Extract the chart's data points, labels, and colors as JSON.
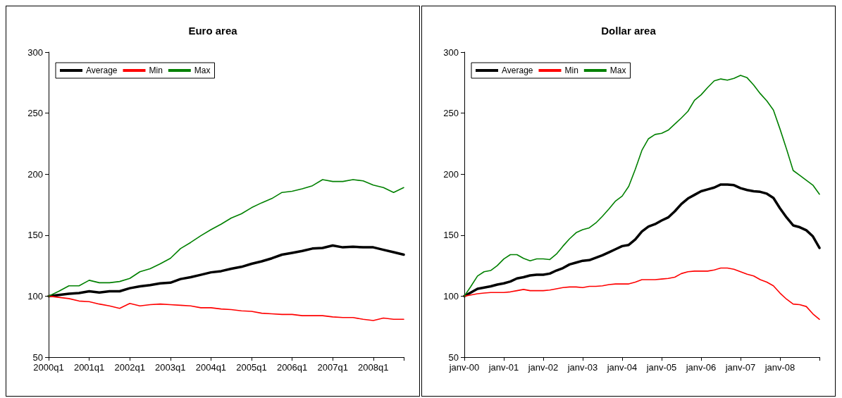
{
  "chart_data": [
    {
      "type": "line",
      "title": "Euro area",
      "categories": [
        "2000q1",
        null,
        null,
        null,
        "2001q1",
        null,
        null,
        null,
        "2002q1",
        null,
        null,
        null,
        "2003q1",
        null,
        null,
        null,
        "2004q1",
        null,
        null,
        null,
        "2005q1",
        null,
        null,
        null,
        "2006q1",
        null,
        null,
        null,
        "2007q1",
        null,
        null,
        null,
        "2008q1",
        null,
        null,
        null
      ],
      "series": [
        {
          "name": "Average",
          "color": "#000000",
          "values": [
            100,
            101,
            102,
            102.5,
            104,
            103,
            104,
            104,
            106.5,
            108,
            109,
            110.5,
            111,
            114,
            115.5,
            117.5,
            119.5,
            120.5,
            122.5,
            124,
            126.5,
            128.5,
            131,
            134,
            135.5,
            137,
            139,
            139.5,
            141.5,
            140,
            140.5,
            140,
            140,
            138,
            136,
            134
          ]
        },
        {
          "name": "Min",
          "color": "#ff0000",
          "values": [
            100,
            99,
            98,
            96,
            95.5,
            93.5,
            92,
            90,
            94,
            92,
            93,
            93.5,
            93,
            92.5,
            92,
            90.5,
            90.5,
            89.5,
            89,
            88,
            87.5,
            86,
            85.5,
            85,
            85,
            84,
            84,
            84,
            83,
            82.5,
            82.5,
            81,
            80,
            82,
            81,
            81
          ]
        },
        {
          "name": "Max",
          "color": "#008000",
          "values": [
            100,
            104,
            108.5,
            108.5,
            113,
            111,
            111,
            112,
            114.5,
            120,
            122.5,
            126.5,
            131,
            139,
            144,
            149.5,
            154.5,
            159,
            164,
            167.5,
            172.5,
            176.5,
            180,
            185,
            186,
            188,
            190.5,
            195.5,
            194,
            194,
            195.5,
            194.5,
            191,
            189,
            185,
            189
          ]
        }
      ],
      "ylim": [
        50,
        300
      ],
      "yticks": [
        50,
        100,
        150,
        200,
        250,
        300
      ],
      "grid": false,
      "legend": "top left",
      "marker": "none",
      "line_style": "solid"
    },
    {
      "type": "line",
      "title": "Dollar area",
      "categories": [
        "janv-00",
        null,
        null,
        null,
        null,
        null,
        "janv-01",
        null,
        null,
        null,
        null,
        null,
        "janv-02",
        null,
        null,
        null,
        null,
        null,
        "janv-03",
        null,
        null,
        null,
        null,
        null,
        "janv-04",
        null,
        null,
        null,
        null,
        null,
        "janv-05",
        null,
        null,
        null,
        null,
        null,
        "janv-06",
        null,
        null,
        null,
        null,
        null,
        "janv-07",
        null,
        null,
        null,
        null,
        null,
        "janv-08",
        null,
        null,
        null,
        null,
        null,
        null
      ],
      "series": [
        {
          "name": "Average",
          "color": "#000000",
          "values": [
            100,
            103,
            106,
            107,
            108,
            109.5,
            110.5,
            112,
            114.5,
            115.5,
            117,
            117.5,
            117.5,
            118.5,
            121,
            123,
            126,
            127.5,
            129,
            129.5,
            131.5,
            133.5,
            136,
            138.5,
            141,
            142,
            146.5,
            153,
            157,
            159,
            162,
            164.5,
            169.5,
            175.5,
            180,
            183,
            186,
            187.5,
            189,
            191.5,
            191.5,
            191,
            188.5,
            187,
            186,
            185.5,
            184,
            180.5,
            172,
            164.5,
            158,
            156.5,
            154,
            149,
            139.5
          ]
        },
        {
          "name": "Min",
          "color": "#ff0000",
          "values": [
            100,
            101,
            102,
            102.5,
            103,
            103,
            103,
            103.5,
            104.5,
            105.5,
            104.5,
            104.5,
            104.5,
            105,
            106,
            107,
            107.5,
            107.5,
            107,
            108,
            108,
            108.5,
            109.5,
            110,
            110,
            110,
            111.5,
            113.5,
            113.5,
            113.5,
            114,
            114.5,
            115.5,
            118.5,
            120,
            120.5,
            120.5,
            120.5,
            121.5,
            123,
            123,
            122,
            120,
            118,
            116.5,
            113.5,
            111.5,
            108.5,
            102.5,
            97.5,
            93.5,
            93,
            91.5,
            85.5,
            81
          ]
        },
        {
          "name": "Max",
          "color": "#008000",
          "values": [
            100,
            108,
            116.5,
            120,
            121,
            125,
            130.5,
            134,
            134,
            131,
            129,
            130.5,
            130.5,
            130,
            134.5,
            141,
            147,
            152,
            154.5,
            156,
            160,
            165.5,
            171.5,
            178,
            182,
            190,
            204,
            219.5,
            229,
            232.5,
            233.5,
            236,
            241,
            246,
            251.5,
            260.5,
            265,
            271,
            276.5,
            278,
            277,
            278.5,
            281,
            279,
            273,
            266,
            260,
            252.5,
            237,
            220.5,
            203,
            199,
            195,
            191,
            183.5
          ]
        }
      ],
      "ylim": [
        50,
        300
      ],
      "yticks": [
        50,
        100,
        150,
        200,
        250,
        300
      ],
      "grid": false,
      "legend": "top left",
      "marker": "none",
      "line_style": "solid"
    }
  ]
}
